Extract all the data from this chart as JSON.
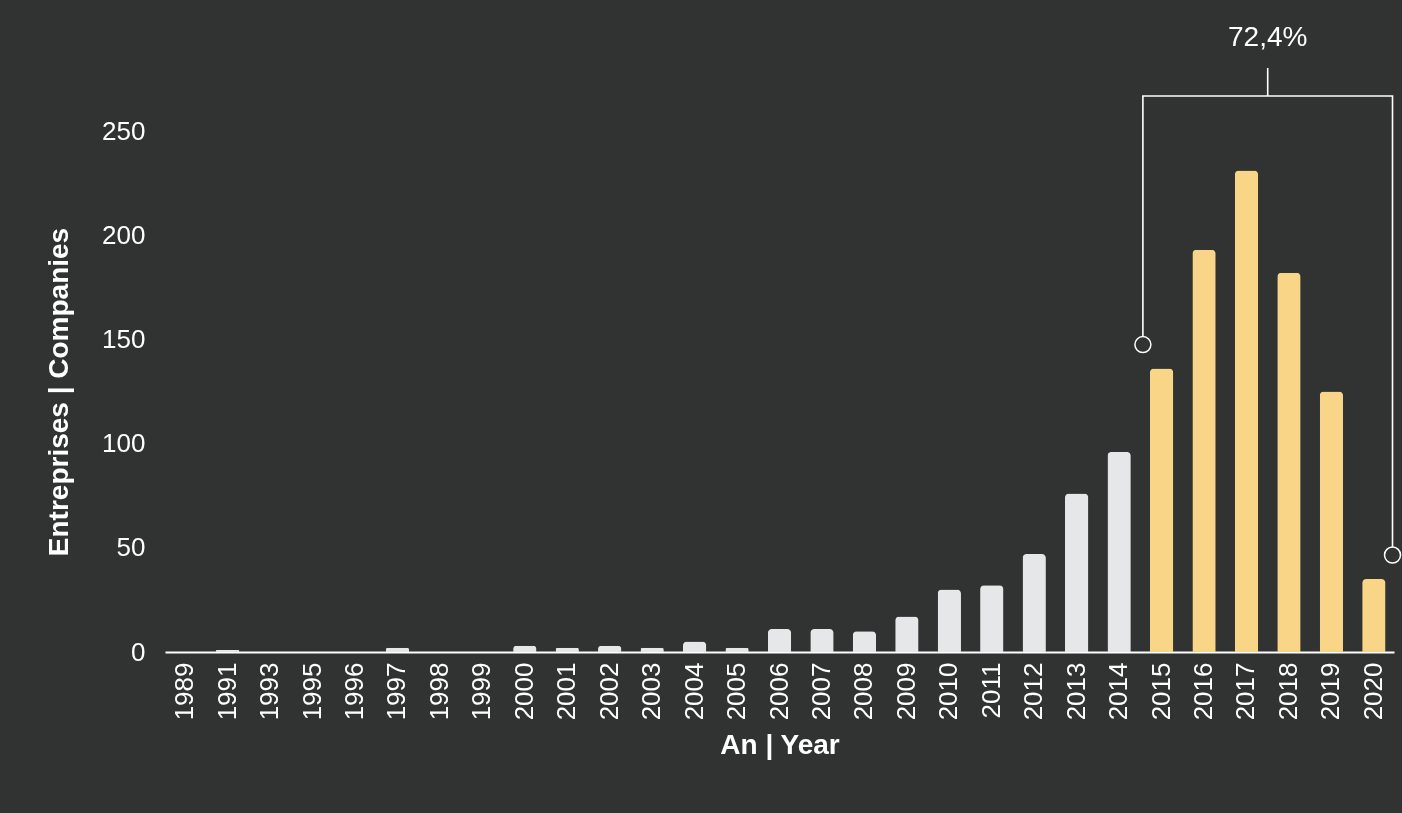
{
  "chart_data": {
    "type": "bar",
    "xlabel": "An | Year",
    "ylabel": "Entreprises | Companies",
    "categories": [
      "1989",
      "1991",
      "1993",
      "1995",
      "1996",
      "1997",
      "1998",
      "1999",
      "2000",
      "2001",
      "2002",
      "2003",
      "2004",
      "2005",
      "2006",
      "2007",
      "2008",
      "2009",
      "2010",
      "2011",
      "2012",
      "2013",
      "2014",
      "2015",
      "2016",
      "2017",
      "2018",
      "2019",
      "2020"
    ],
    "values": [
      0,
      1,
      0,
      0,
      0,
      2,
      0,
      0,
      3,
      2,
      3,
      2,
      5,
      2,
      11,
      11,
      10,
      17,
      30,
      32,
      47,
      76,
      96,
      136,
      193,
      231,
      182,
      125,
      35
    ],
    "colors": [
      "#e6e7e8",
      "#e6e7e8",
      "#e6e7e8",
      "#e6e7e8",
      "#e6e7e8",
      "#e6e7e8",
      "#e6e7e8",
      "#e6e7e8",
      "#e6e7e8",
      "#e6e7e8",
      "#e6e7e8",
      "#e6e7e8",
      "#e6e7e8",
      "#e6e7e8",
      "#e6e7e8",
      "#e6e7e8",
      "#e6e7e8",
      "#e6e7e8",
      "#e6e7e8",
      "#e6e7e8",
      "#e6e7e8",
      "#e6e7e8",
      "#e6e7e8",
      "#f8d587",
      "#f8d587",
      "#f8d587",
      "#f8d587",
      "#f8d587",
      "#f8d587"
    ],
    "ylim": [
      0,
      250
    ],
    "yticks": [
      0,
      50,
      100,
      150,
      200,
      250
    ],
    "grid": false,
    "annotations": [
      "72,4%"
    ]
  }
}
